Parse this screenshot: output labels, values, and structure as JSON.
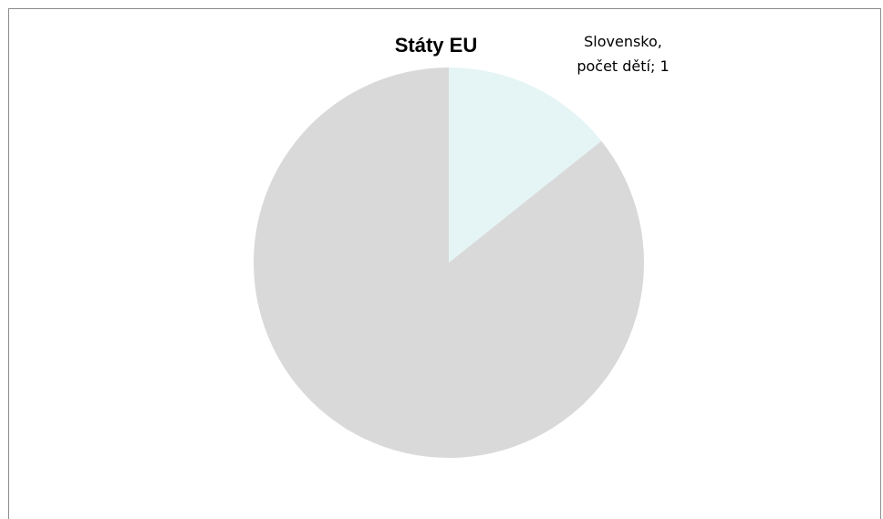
{
  "chart_data": {
    "type": "pie",
    "title": "Státy EU",
    "slices": [
      {
        "label": "Slovensko",
        "series": "počet dětí",
        "value": 1,
        "color": "#e5f4f4",
        "label_lines": [
          "Slovensko,",
          "počet dětí; 1"
        ]
      },
      {
        "label": "",
        "series": "počet dětí",
        "value": 6,
        "color": "#d9d9d9",
        "label_lines": []
      }
    ],
    "start_angle_deg": 0,
    "direction": "clockwise"
  }
}
